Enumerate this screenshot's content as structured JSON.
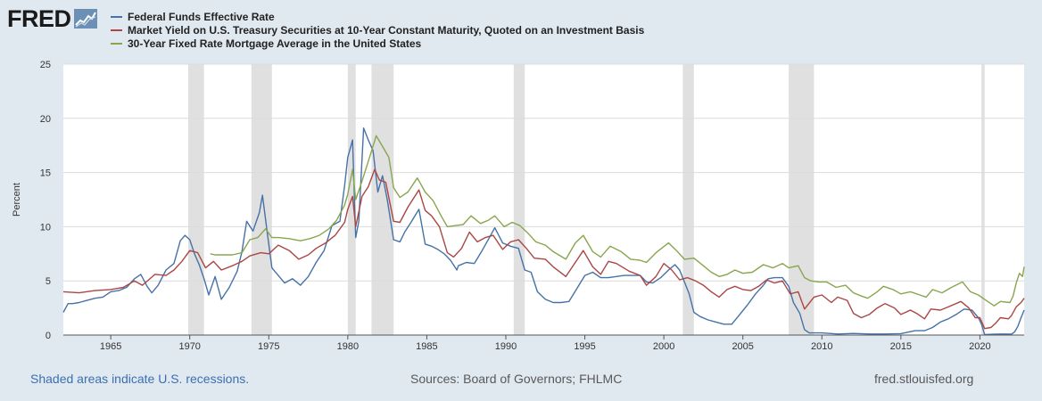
{
  "logo": {
    "text": "FRED"
  },
  "legend": [
    {
      "label": "Federal Funds Effective Rate",
      "color": "#4572a7"
    },
    {
      "label": "Market Yield on U.S. Treasury Securities at 10-Year Constant Maturity, Quoted on an Investment Basis",
      "color": "#aa4643"
    },
    {
      "label": "30-Year Fixed Rate Mortgage Average in the United States",
      "color": "#89a54e"
    }
  ],
  "footer": {
    "left": "Shaded areas indicate U.S. recessions.",
    "center": "Sources: Board of Governors; FHLMC",
    "right": "fred.stlouisfed.org"
  },
  "chart_data": {
    "type": "line",
    "ylabel": "Percent",
    "xlim": [
      1962.0,
      2022.8
    ],
    "ylim": [
      0,
      25
    ],
    "yticks": [
      0,
      5,
      10,
      15,
      20,
      25
    ],
    "xticks": [
      1965,
      1970,
      1975,
      1980,
      1985,
      1990,
      1995,
      2000,
      2005,
      2010,
      2015,
      2020
    ],
    "grid": true,
    "legend_position": "top-left",
    "recessions": [
      [
        1969.9,
        1970.9
      ],
      [
        1973.9,
        1975.2
      ],
      [
        1980.0,
        1980.5
      ],
      [
        1981.5,
        1982.9
      ],
      [
        1990.5,
        1991.2
      ],
      [
        2001.2,
        2001.9
      ],
      [
        2007.9,
        2009.5
      ],
      [
        2020.1,
        2020.3
      ]
    ],
    "series": [
      {
        "name": "Federal Funds Effective Rate",
        "color": "#4572a7",
        "x": [
          1962.0,
          1962.3,
          1962.6,
          1963.0,
          1963.5,
          1964.0,
          1964.5,
          1965.0,
          1965.5,
          1966.0,
          1966.5,
          1966.9,
          1967.3,
          1967.6,
          1968.0,
          1968.5,
          1969.0,
          1969.4,
          1969.7,
          1970.0,
          1970.3,
          1970.6,
          1970.9,
          1971.2,
          1971.6,
          1972.0,
          1972.5,
          1973.0,
          1973.3,
          1973.6,
          1974.0,
          1974.4,
          1974.6,
          1974.9,
          1975.2,
          1975.6,
          1976.0,
          1976.5,
          1977.0,
          1977.5,
          1978.0,
          1978.5,
          1979.0,
          1979.5,
          1979.8,
          1980.0,
          1980.3,
          1980.5,
          1980.7,
          1981.0,
          1981.3,
          1981.6,
          1981.9,
          1982.2,
          1982.5,
          1982.9,
          1983.3,
          1983.6,
          1984.0,
          1984.5,
          1984.9,
          1985.3,
          1985.7,
          1986.1,
          1986.5,
          1986.9,
          1987.0,
          1987.5,
          1988.0,
          1988.5,
          1989.0,
          1989.3,
          1989.8,
          1990.3,
          1990.8,
          1991.2,
          1991.6,
          1992.0,
          1992.5,
          1993.0,
          1993.5,
          1994.0,
          1994.5,
          1995.0,
          1995.5,
          1996.0,
          1996.5,
          1997.0,
          1997.5,
          1998.0,
          1998.5,
          1998.9,
          1999.3,
          1999.8,
          2000.3,
          2000.7,
          2001.0,
          2001.3,
          2001.6,
          2001.9,
          2002.3,
          2002.8,
          2003.3,
          2003.8,
          2004.3,
          2004.8,
          2005.3,
          2005.8,
          2006.3,
          2006.6,
          2007.0,
          2007.5,
          2007.9,
          2008.2,
          2008.6,
          2008.9,
          2009.2,
          2010.0,
          2011.0,
          2012.0,
          2013.0,
          2014.0,
          2015.0,
          2015.9,
          2016.5,
          2017.0,
          2017.5,
          2018.0,
          2018.5,
          2019.0,
          2019.5,
          2019.9,
          2020.1,
          2020.3,
          2021.0,
          2021.5,
          2022.0,
          2022.2,
          2022.4,
          2022.6,
          2022.8
        ],
        "y": [
          2.1,
          2.9,
          2.9,
          3.0,
          3.2,
          3.4,
          3.5,
          4.0,
          4.1,
          4.4,
          5.2,
          5.6,
          4.5,
          3.9,
          4.6,
          6.0,
          6.6,
          8.7,
          9.2,
          8.8,
          7.5,
          6.5,
          5.2,
          3.7,
          5.4,
          3.3,
          4.4,
          5.9,
          7.7,
          10.5,
          9.6,
          11.3,
          12.9,
          9.5,
          6.2,
          5.5,
          4.8,
          5.2,
          4.6,
          5.4,
          6.7,
          7.8,
          10.1,
          10.5,
          13.8,
          16.4,
          18.0,
          9.0,
          10.5,
          19.1,
          18.0,
          17.0,
          13.2,
          14.7,
          12.5,
          8.8,
          8.6,
          9.5,
          10.4,
          11.6,
          8.4,
          8.2,
          7.9,
          7.5,
          6.9,
          6.0,
          6.4,
          6.7,
          6.6,
          7.8,
          9.1,
          9.9,
          8.5,
          8.2,
          8.0,
          6.0,
          5.8,
          4.0,
          3.3,
          3.0,
          3.0,
          3.1,
          4.3,
          5.5,
          5.8,
          5.3,
          5.3,
          5.4,
          5.5,
          5.5,
          5.5,
          4.9,
          4.8,
          5.3,
          6.0,
          6.5,
          6.0,
          4.9,
          3.8,
          2.1,
          1.7,
          1.4,
          1.2,
          1.0,
          1.0,
          1.9,
          2.8,
          3.8,
          4.6,
          5.2,
          5.3,
          5.3,
          4.5,
          3.0,
          2.0,
          0.5,
          0.2,
          0.2,
          0.1,
          0.15,
          0.1,
          0.1,
          0.13,
          0.4,
          0.4,
          0.7,
          1.2,
          1.5,
          1.9,
          2.4,
          2.3,
          1.6,
          1.0,
          0.05,
          0.09,
          0.1,
          0.08,
          0.3,
          0.8,
          1.6,
          2.3
        ]
      },
      {
        "name": "Market Yield on U.S. Treasury Securities at 10-Year Constant Maturity, Quoted on an Investment Basis",
        "color": "#aa4643",
        "x": [
          1962.0,
          1963.0,
          1964.0,
          1965.0,
          1965.8,
          1966.5,
          1967.0,
          1967.8,
          1968.5,
          1969.0,
          1969.5,
          1970.0,
          1970.5,
          1971.0,
          1971.5,
          1972.0,
          1972.7,
          1973.3,
          1973.8,
          1974.5,
          1975.0,
          1975.6,
          1976.3,
          1976.9,
          1977.5,
          1978.0,
          1978.6,
          1979.2,
          1979.8,
          1980.0,
          1980.3,
          1980.5,
          1980.9,
          1981.3,
          1981.7,
          1982.0,
          1982.4,
          1982.9,
          1983.3,
          1983.8,
          1984.5,
          1984.9,
          1985.3,
          1985.8,
          1986.3,
          1986.7,
          1987.2,
          1987.7,
          1988.2,
          1988.7,
          1989.2,
          1989.8,
          1990.3,
          1990.8,
          1991.3,
          1991.8,
          1992.5,
          1993.0,
          1993.8,
          1994.3,
          1994.9,
          1995.5,
          1996.0,
          1996.5,
          1997.0,
          1997.8,
          1998.5,
          1998.9,
          1999.5,
          2000.0,
          2000.5,
          2001.0,
          2001.5,
          2002.0,
          2002.5,
          2003.0,
          2003.5,
          2004.0,
          2004.5,
          2005.0,
          2005.5,
          2006.0,
          2006.5,
          2007.0,
          2007.5,
          2008.0,
          2008.5,
          2008.9,
          2009.5,
          2010.0,
          2010.6,
          2011.0,
          2011.6,
          2012.0,
          2012.5,
          2013.0,
          2013.5,
          2014.0,
          2014.6,
          2015.0,
          2015.6,
          2016.0,
          2016.5,
          2016.9,
          2017.5,
          2018.0,
          2018.8,
          2019.3,
          2019.7,
          2020.0,
          2020.3,
          2020.7,
          2021.0,
          2021.3,
          2021.8,
          2022.0,
          2022.3,
          2022.6,
          2022.8
        ],
        "y": [
          4.0,
          3.9,
          4.1,
          4.2,
          4.4,
          5.0,
          4.6,
          5.6,
          5.5,
          6.0,
          6.8,
          7.8,
          7.6,
          6.2,
          6.8,
          6.0,
          6.4,
          6.8,
          7.3,
          7.6,
          7.5,
          8.3,
          7.8,
          7.0,
          7.4,
          8.0,
          8.5,
          9.2,
          10.4,
          11.6,
          12.8,
          10.0,
          12.8,
          13.7,
          15.3,
          14.3,
          14.1,
          10.5,
          10.4,
          11.8,
          13.4,
          11.5,
          11.0,
          10.0,
          7.6,
          7.2,
          8.0,
          9.5,
          8.6,
          9.0,
          9.2,
          7.9,
          8.6,
          8.8,
          8.0,
          7.1,
          7.0,
          6.3,
          5.4,
          6.5,
          7.8,
          6.3,
          5.6,
          6.8,
          6.6,
          5.9,
          5.5,
          4.6,
          5.4,
          6.6,
          6.0,
          5.1,
          5.3,
          5.0,
          4.6,
          4.0,
          3.5,
          4.2,
          4.5,
          4.2,
          4.1,
          4.5,
          5.1,
          4.8,
          5.0,
          3.8,
          4.0,
          2.4,
          3.5,
          3.7,
          3.0,
          3.5,
          3.2,
          2.0,
          1.6,
          1.9,
          2.5,
          2.9,
          2.5,
          1.9,
          2.3,
          2.0,
          1.5,
          2.4,
          2.3,
          2.6,
          3.1,
          2.5,
          1.6,
          1.6,
          0.6,
          0.7,
          1.1,
          1.6,
          1.5,
          1.8,
          2.6,
          3.0,
          3.4
        ]
      },
      {
        "name": "30-Year Fixed Rate Mortgage Average in the United States",
        "color": "#89a54e",
        "x": [
          1971.3,
          1971.6,
          1972.0,
          1972.7,
          1973.3,
          1973.8,
          1974.3,
          1974.8,
          1975.2,
          1975.6,
          1976.3,
          1977.0,
          1977.6,
          1978.2,
          1978.8,
          1979.3,
          1979.8,
          1980.0,
          1980.3,
          1980.5,
          1980.9,
          1981.4,
          1981.8,
          1982.2,
          1982.6,
          1982.9,
          1983.3,
          1983.8,
          1984.4,
          1984.9,
          1985.4,
          1985.9,
          1986.3,
          1986.8,
          1987.3,
          1987.8,
          1988.4,
          1988.9,
          1989.3,
          1989.9,
          1990.4,
          1990.9,
          1991.4,
          1991.9,
          1992.5,
          1993.0,
          1993.8,
          1994.4,
          1994.9,
          1995.5,
          1996.0,
          1996.6,
          1997.3,
          1997.9,
          1998.5,
          1998.9,
          1999.5,
          2000.3,
          2000.8,
          2001.3,
          2001.9,
          2002.5,
          2003.0,
          2003.5,
          2004.0,
          2004.5,
          2005.0,
          2005.6,
          2006.3,
          2006.9,
          2007.5,
          2007.9,
          2008.5,
          2008.9,
          2009.3,
          2009.8,
          2010.3,
          2010.9,
          2011.5,
          2012.0,
          2012.5,
          2012.9,
          2013.5,
          2013.9,
          2014.5,
          2015.0,
          2015.6,
          2016.2,
          2016.6,
          2017.0,
          2017.6,
          2018.2,
          2018.9,
          2019.4,
          2019.9,
          2020.3,
          2020.9,
          2021.3,
          2021.9,
          2022.1,
          2022.3,
          2022.5,
          2022.7,
          2022.8
        ],
        "y": [
          7.5,
          7.4,
          7.4,
          7.4,
          7.6,
          8.8,
          9.0,
          9.8,
          9.0,
          9.0,
          8.9,
          8.7,
          8.9,
          9.2,
          9.8,
          10.6,
          12.0,
          13.0,
          15.3,
          12.5,
          14.2,
          16.5,
          18.4,
          17.4,
          16.4,
          13.6,
          12.7,
          13.2,
          14.5,
          13.2,
          12.4,
          11.0,
          10.0,
          10.1,
          10.2,
          11.0,
          10.3,
          10.6,
          11.0,
          10.0,
          10.4,
          10.1,
          9.4,
          8.6,
          8.3,
          7.7,
          7.0,
          8.5,
          9.2,
          7.7,
          7.2,
          8.2,
          7.7,
          7.0,
          6.9,
          6.7,
          7.6,
          8.5,
          7.8,
          7.0,
          7.1,
          6.4,
          5.8,
          5.4,
          5.6,
          6.0,
          5.7,
          5.8,
          6.5,
          6.2,
          6.6,
          6.2,
          6.4,
          5.3,
          5.0,
          4.9,
          4.9,
          4.4,
          4.6,
          3.9,
          3.6,
          3.4,
          4.0,
          4.5,
          4.2,
          3.8,
          4.0,
          3.7,
          3.5,
          4.2,
          3.9,
          4.4,
          4.9,
          4.0,
          3.7,
          3.3,
          2.7,
          3.1,
          3.0,
          3.6,
          4.8,
          5.7,
          5.4,
          6.3
        ]
      }
    ]
  }
}
